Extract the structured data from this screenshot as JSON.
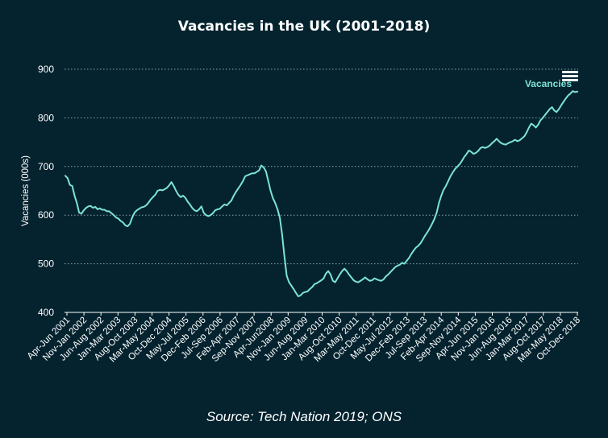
{
  "chart_data": {
    "type": "line",
    "title": "Vacancies in the UK (2001-2018)",
    "ylabel": "Vacancies (000s)",
    "xlabel": "",
    "ylim": [
      400,
      900
    ],
    "yticks": [
      400,
      500,
      600,
      700,
      800,
      900
    ],
    "grid": true,
    "legend": {
      "position": "top-right",
      "entries": [
        "Vacancies"
      ]
    },
    "x_tick_labels": [
      "Apr-Jun 2001",
      "Nov-Jan 2002",
      "Jun-Aug 2002",
      "Jan-Mar 2003",
      "Aug-Oct 2003",
      "Mar-May 2004",
      "Oct-Dec 2004",
      "May-Jul 2005",
      "Dec-Feb 2006",
      "Jul-Sep 2006",
      "Feb-Apr 2007",
      "Sep-Nov 2007",
      "Apr-Jun2008",
      "Nov-Jan 2009",
      "Jun-Aug 2009",
      "Jan-Mar 2010",
      "Aug-Oct 2010",
      "Mar-May 2011",
      "Oct-Dec 2011",
      "May-Jul 2012",
      "Dec-Feb 2013",
      "Jul-Sep 2013",
      "Feb-Apr 2014",
      "Sep-Nov 2014",
      "Apr-Jun 2015",
      "Nov-Jan 2016",
      "Jun-Aug 2016",
      "Jan-Mar 2017",
      "Aug-Oct 2017",
      "Mar-May 2018",
      "Oct-Dec 2018"
    ],
    "series": [
      {
        "name": "Vacancies",
        "color": "#7de3d8",
        "values": [
          681,
          676,
          662,
          660,
          640,
          625,
          605,
          603,
          610,
          615,
          618,
          619,
          615,
          617,
          612,
          614,
          611,
          611,
          608,
          608,
          604,
          600,
          595,
          593,
          588,
          585,
          579,
          577,
          582,
          595,
          605,
          610,
          613,
          616,
          617,
          620,
          625,
          632,
          637,
          642,
          650,
          652,
          651,
          653,
          656,
          661,
          668,
          660,
          650,
          642,
          637,
          640,
          636,
          628,
          622,
          615,
          610,
          608,
          612,
          618,
          605,
          600,
          598,
          600,
          604,
          610,
          612,
          613,
          618,
          622,
          620,
          625,
          630,
          640,
          648,
          655,
          662,
          670,
          680,
          682,
          684,
          686,
          686,
          689,
          692,
          702,
          698,
          690,
          670,
          650,
          635,
          625,
          612,
          595,
          560,
          515,
          475,
          462,
          455,
          448,
          440,
          433,
          435,
          440,
          442,
          443,
          448,
          452,
          458,
          460,
          463,
          466,
          470,
          480,
          485,
          478,
          465,
          462,
          470,
          478,
          485,
          490,
          485,
          478,
          472,
          466,
          463,
          462,
          465,
          468,
          472,
          468,
          465,
          466,
          470,
          468,
          466,
          465,
          468,
          474,
          478,
          483,
          488,
          493,
          496,
          498,
          502,
          500,
          506,
          512,
          520,
          527,
          533,
          537,
          542,
          550,
          558,
          565,
          573,
          582,
          592,
          605,
          625,
          640,
          652,
          660,
          670,
          680,
          688,
          695,
          700,
          705,
          712,
          720,
          726,
          733,
          730,
          726,
          728,
          732,
          738,
          740,
          738,
          740,
          743,
          748,
          752,
          757,
          752,
          748,
          746,
          745,
          748,
          750,
          752,
          755,
          752,
          754,
          758,
          762,
          770,
          780,
          788,
          785,
          780,
          786,
          795,
          800,
          806,
          812,
          818,
          822,
          815,
          812,
          818,
          826,
          833,
          840,
          846,
          850,
          855,
          853,
          854
        ]
      }
    ]
  },
  "source": "Source: Tech Nation 2019; ONS",
  "menu_icon": "hamburger-menu-icon"
}
